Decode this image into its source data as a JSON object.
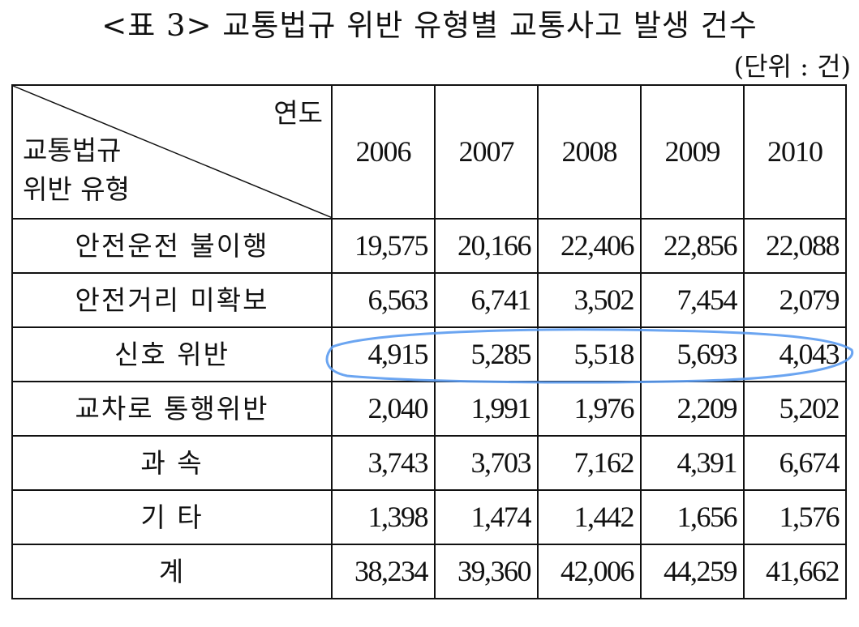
{
  "title": "<표 3> 교통법규 위반 유형별 교통사고 발생 건수",
  "unit": "(단위 : 건)",
  "header": {
    "corner_top": "연도",
    "corner_bottom_line1": "교통법규",
    "corner_bottom_line2": "위반 유형",
    "years": [
      "2006",
      "2007",
      "2008",
      "2009",
      "2010"
    ]
  },
  "rows": [
    {
      "label": "안전운전 불이행",
      "values": [
        "19,575",
        "20,166",
        "22,406",
        "22,856",
        "22,088"
      ]
    },
    {
      "label": "안전거리 미확보",
      "values": [
        "6,563",
        "6,741",
        "3,502",
        "7,454",
        "2,079"
      ]
    },
    {
      "label": "신호 위반",
      "values": [
        "4,915",
        "5,285",
        "5,518",
        "5,693",
        "4,043"
      ]
    },
    {
      "label": "교차로 통행위반",
      "values": [
        "2,040",
        "1,991",
        "1,976",
        "2,209",
        "5,202"
      ]
    },
    {
      "label": "과 속",
      "values": [
        "3,743",
        "3,703",
        "7,162",
        "4,391",
        "6,674"
      ]
    },
    {
      "label": "기 타",
      "values": [
        "1,398",
        "1,474",
        "1,442",
        "1,656",
        "1,576"
      ]
    },
    {
      "label": "계",
      "values": [
        "38,234",
        "39,360",
        "42,006",
        "44,259",
        "41,662"
      ]
    }
  ],
  "highlight": {
    "row": "신호 위반",
    "color": "#5b9bf0"
  }
}
